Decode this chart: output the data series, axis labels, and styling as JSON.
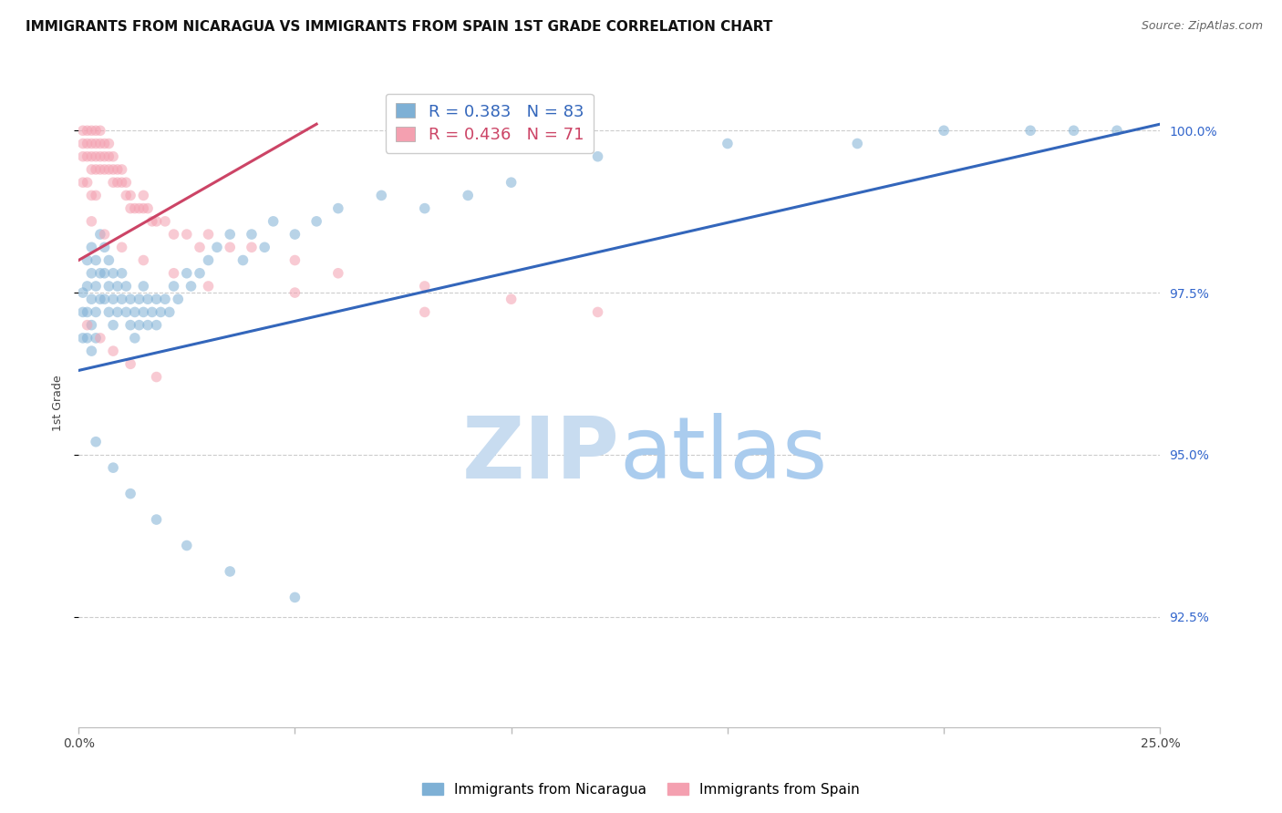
{
  "title": "IMMIGRANTS FROM NICARAGUA VS IMMIGRANTS FROM SPAIN 1ST GRADE CORRELATION CHART",
  "source": "Source: ZipAtlas.com",
  "ylabel": "1st Grade",
  "y_ticks": [
    0.925,
    0.95,
    0.975,
    1.0
  ],
  "y_tick_labels": [
    "92.5%",
    "95.0%",
    "97.5%",
    "100.0%"
  ],
  "xlim": [
    0.0,
    0.25
  ],
  "ylim": [
    0.908,
    1.008
  ],
  "blue_color": "#7EB0D5",
  "pink_color": "#F4A0B0",
  "blue_line_color": "#3366BB",
  "pink_line_color": "#CC4466",
  "right_axis_color": "#3366CC",
  "legend_label_nicaragua": "Immigrants from Nicaragua",
  "legend_label_spain": "Immigrants from Spain",
  "R_blue": 0.383,
  "N_blue": 83,
  "R_pink": 0.436,
  "N_pink": 71,
  "blue_scatter_x": [
    0.001,
    0.001,
    0.001,
    0.002,
    0.002,
    0.002,
    0.002,
    0.003,
    0.003,
    0.003,
    0.003,
    0.003,
    0.004,
    0.004,
    0.004,
    0.004,
    0.005,
    0.005,
    0.005,
    0.006,
    0.006,
    0.006,
    0.007,
    0.007,
    0.007,
    0.008,
    0.008,
    0.008,
    0.009,
    0.009,
    0.01,
    0.01,
    0.011,
    0.011,
    0.012,
    0.012,
    0.013,
    0.013,
    0.014,
    0.014,
    0.015,
    0.015,
    0.016,
    0.016,
    0.017,
    0.018,
    0.018,
    0.019,
    0.02,
    0.021,
    0.022,
    0.023,
    0.025,
    0.026,
    0.028,
    0.03,
    0.032,
    0.035,
    0.038,
    0.04,
    0.043,
    0.045,
    0.05,
    0.055,
    0.06,
    0.07,
    0.08,
    0.09,
    0.1,
    0.12,
    0.15,
    0.18,
    0.2,
    0.22,
    0.23,
    0.24,
    0.004,
    0.008,
    0.012,
    0.018,
    0.025,
    0.035,
    0.05
  ],
  "blue_scatter_y": [
    0.975,
    0.972,
    0.968,
    0.98,
    0.976,
    0.972,
    0.968,
    0.982,
    0.978,
    0.974,
    0.97,
    0.966,
    0.98,
    0.976,
    0.972,
    0.968,
    0.984,
    0.978,
    0.974,
    0.982,
    0.978,
    0.974,
    0.98,
    0.976,
    0.972,
    0.978,
    0.974,
    0.97,
    0.976,
    0.972,
    0.978,
    0.974,
    0.976,
    0.972,
    0.974,
    0.97,
    0.972,
    0.968,
    0.974,
    0.97,
    0.976,
    0.972,
    0.974,
    0.97,
    0.972,
    0.974,
    0.97,
    0.972,
    0.974,
    0.972,
    0.976,
    0.974,
    0.978,
    0.976,
    0.978,
    0.98,
    0.982,
    0.984,
    0.98,
    0.984,
    0.982,
    0.986,
    0.984,
    0.986,
    0.988,
    0.99,
    0.988,
    0.99,
    0.992,
    0.996,
    0.998,
    0.998,
    1.0,
    1.0,
    1.0,
    1.0,
    0.952,
    0.948,
    0.944,
    0.94,
    0.936,
    0.932,
    0.928
  ],
  "pink_scatter_x": [
    0.001,
    0.001,
    0.001,
    0.001,
    0.002,
    0.002,
    0.002,
    0.002,
    0.003,
    0.003,
    0.003,
    0.003,
    0.003,
    0.004,
    0.004,
    0.004,
    0.004,
    0.004,
    0.005,
    0.005,
    0.005,
    0.005,
    0.006,
    0.006,
    0.006,
    0.007,
    0.007,
    0.007,
    0.008,
    0.008,
    0.008,
    0.009,
    0.009,
    0.01,
    0.01,
    0.011,
    0.011,
    0.012,
    0.012,
    0.013,
    0.014,
    0.015,
    0.015,
    0.016,
    0.017,
    0.018,
    0.02,
    0.022,
    0.025,
    0.028,
    0.03,
    0.035,
    0.04,
    0.05,
    0.06,
    0.08,
    0.1,
    0.12,
    0.003,
    0.006,
    0.01,
    0.015,
    0.022,
    0.03,
    0.05,
    0.08,
    0.002,
    0.005,
    0.008,
    0.012,
    0.018
  ],
  "pink_scatter_y": [
    1.0,
    0.998,
    0.996,
    0.992,
    1.0,
    0.998,
    0.996,
    0.992,
    1.0,
    0.998,
    0.996,
    0.994,
    0.99,
    1.0,
    0.998,
    0.996,
    0.994,
    0.99,
    1.0,
    0.998,
    0.996,
    0.994,
    0.998,
    0.996,
    0.994,
    0.998,
    0.996,
    0.994,
    0.996,
    0.994,
    0.992,
    0.994,
    0.992,
    0.994,
    0.992,
    0.992,
    0.99,
    0.99,
    0.988,
    0.988,
    0.988,
    0.99,
    0.988,
    0.988,
    0.986,
    0.986,
    0.986,
    0.984,
    0.984,
    0.982,
    0.984,
    0.982,
    0.982,
    0.98,
    0.978,
    0.976,
    0.974,
    0.972,
    0.986,
    0.984,
    0.982,
    0.98,
    0.978,
    0.976,
    0.975,
    0.972,
    0.97,
    0.968,
    0.966,
    0.964,
    0.962
  ],
  "blue_trend_x": [
    0.0,
    0.25
  ],
  "blue_trend_y": [
    0.963,
    1.001
  ],
  "pink_trend_x": [
    0.0,
    0.055
  ],
  "pink_trend_y": [
    0.98,
    1.001
  ],
  "watermark_zip_color": "#C8DCF0",
  "watermark_atlas_color": "#AACCEE",
  "background_color": "#FFFFFF",
  "grid_color": "#CCCCCC",
  "title_fontsize": 11,
  "axis_label_fontsize": 9,
  "tick_fontsize": 10,
  "marker_size": 70,
  "marker_alpha": 0.55
}
